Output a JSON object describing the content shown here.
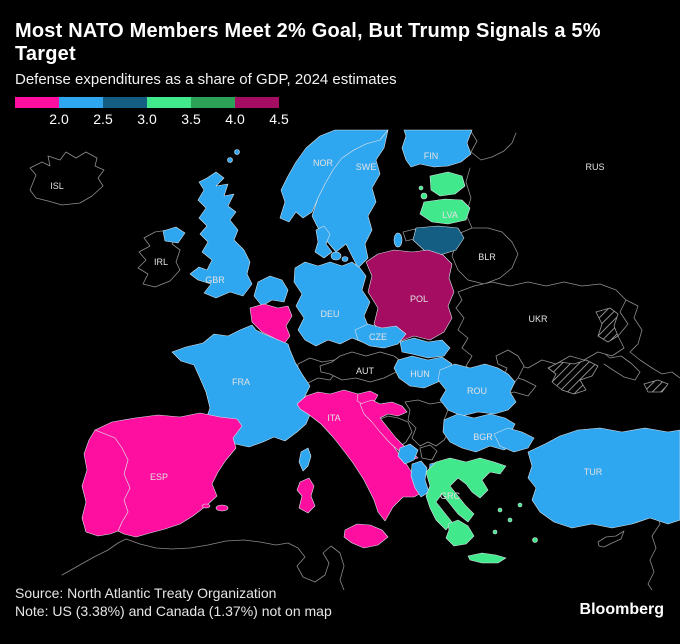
{
  "header": {
    "title": "Most NATO Members Meet 2% Goal, But Trump Signals a 5% Target",
    "subtitle": "Defense expenditures as a share of GDP, 2024 estimates"
  },
  "legend": {
    "tick_labels": [
      "2.0",
      "2.5",
      "3.0",
      "3.5",
      "4.0",
      "4.5"
    ],
    "segments": [
      {
        "range": "below-2.0",
        "color": "#FF0FA0"
      },
      {
        "range": "2.0-2.5",
        "color": "#2FA7F0"
      },
      {
        "range": "2.5-3.0",
        "color": "#145E84"
      },
      {
        "range": "3.0-3.5",
        "color": "#42E88C"
      },
      {
        "range": "3.5-4.0",
        "color": "#2CA158"
      },
      {
        "range": "4.0-4.5",
        "color": "#A50D62"
      }
    ]
  },
  "map": {
    "labels": {
      "ISL": "ISL",
      "IRL": "IRL",
      "GBR": "GBR",
      "NOR": "NOR",
      "SWE": "SWE",
      "FIN": "FIN",
      "RUS": "RUS",
      "LVA": "LVA",
      "BLR": "BLR",
      "POL": "POL",
      "DEU": "DEU",
      "CZE": "CZE",
      "AUT": "AUT",
      "FRA": "FRA",
      "HUN": "HUN",
      "UKR": "UKR",
      "ROU": "ROU",
      "ITA": "ITA",
      "ESP": "ESP",
      "BGR": "BGR",
      "GRC": "GRC",
      "TUR": "TUR"
    }
  },
  "footer": {
    "source": "Source: North Atlantic Treaty Organization",
    "note": "Note: US (3.38%) and Canada (1.37%) not on map",
    "logo": "Bloomberg"
  },
  "chart_data": {
    "type": "choropleth",
    "title": "Most NATO Members Meet 2% Goal, But Trump Signals a 5% Target",
    "subtitle": "Defense expenditures as a share of GDP, 2024 estimates",
    "unit": "% of GDP",
    "legend_stops": [
      2.0,
      2.5,
      3.0,
      3.5,
      4.0,
      4.5
    ],
    "bands": [
      {
        "range": "below 2.0",
        "color": "#FF0FA0",
        "countries": [
          "BEL",
          "LUX",
          "ESP",
          "PRT",
          "ITA",
          "SVN",
          "HRV"
        ]
      },
      {
        "range": "2.0-2.5",
        "color": "#2FA7F0",
        "countries": [
          "GBR",
          "NOR",
          "SWE",
          "FIN",
          "DNK",
          "NLD",
          "DEU",
          "FRA",
          "CZE",
          "SVK",
          "HUN",
          "ROU",
          "BGR",
          "TUR",
          "MNE",
          "ALB",
          "MKD"
        ]
      },
      {
        "range": "2.5-3.0",
        "color": "#145E84",
        "countries": [
          "LTU"
        ]
      },
      {
        "range": "3.0-3.5",
        "color": "#42E88C",
        "countries": [
          "EST",
          "LVA",
          "GRC"
        ]
      },
      {
        "range": "3.5-4.0",
        "color": "#2CA158",
        "countries": []
      },
      {
        "range": "4.0-4.5",
        "color": "#A50D62",
        "countries": [
          "POL"
        ]
      }
    ],
    "uncolored_outlined": [
      "ISL",
      "IRL",
      "RUS",
      "BLR",
      "UKR",
      "MDA",
      "CHE",
      "AUT",
      "SRB",
      "BIH",
      "XKX",
      "KGD"
    ],
    "hatched_regions": [
      "ukraine-crimea",
      "ukraine-donbas",
      "ukraine-east-strip"
    ],
    "annotations": {
      "USA": "3.38%",
      "CAN": "1.37%"
    }
  }
}
